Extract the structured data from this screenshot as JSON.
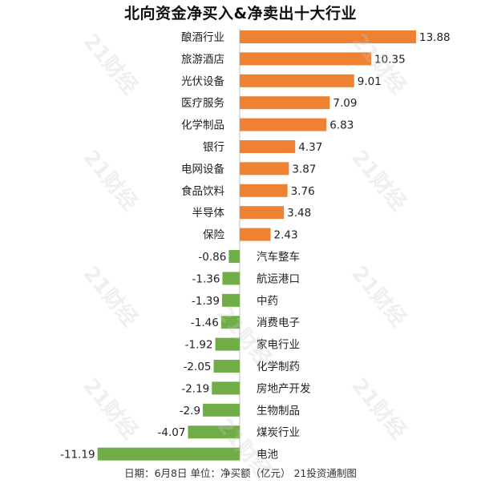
{
  "chart_data": {
    "type": "bar",
    "orientation": "horizontal",
    "title": "北向资金净买入&净卖出十大行业",
    "categories": [
      "酿酒行业",
      "旅游酒店",
      "光伏设备",
      "医疗服务",
      "化学制品",
      "银行",
      "电网设备",
      "食品饮料",
      "半导体",
      "保险",
      "汽车整车",
      "航运港口",
      "中药",
      "消费电子",
      "家电行业",
      "化学制药",
      "房地产开发",
      "生物制品",
      "煤炭行业",
      "电池"
    ],
    "values": [
      13.88,
      10.35,
      9.01,
      7.09,
      6.83,
      4.37,
      3.87,
      3.76,
      3.48,
      2.43,
      -0.86,
      -1.36,
      -1.39,
      -1.46,
      -1.92,
      -2.05,
      -2.19,
      -2.9,
      -4.07,
      -11.19
    ],
    "value_labels": [
      "13.88",
      "10.35",
      "9.01",
      "7.09",
      "6.83",
      "4.37",
      "3.87",
      "3.76",
      "3.48",
      "2.43",
      "-0.86",
      "-1.36",
      "-1.39",
      "-1.46",
      "-1.92",
      "-2.05",
      "-2.19",
      "-2.9",
      "-4.07",
      "-11.19"
    ],
    "xlim": [
      -11.19,
      13.88
    ],
    "grid": false,
    "legend": "none"
  },
  "colors": {
    "positive": "#ef8132",
    "negative": "#70ad47",
    "axis": "#bfbfbf",
    "text": "#222222"
  },
  "footer": "日期：6月8日 单位：净买额（亿元） 21投资通制图",
  "watermark_text": "21财经"
}
